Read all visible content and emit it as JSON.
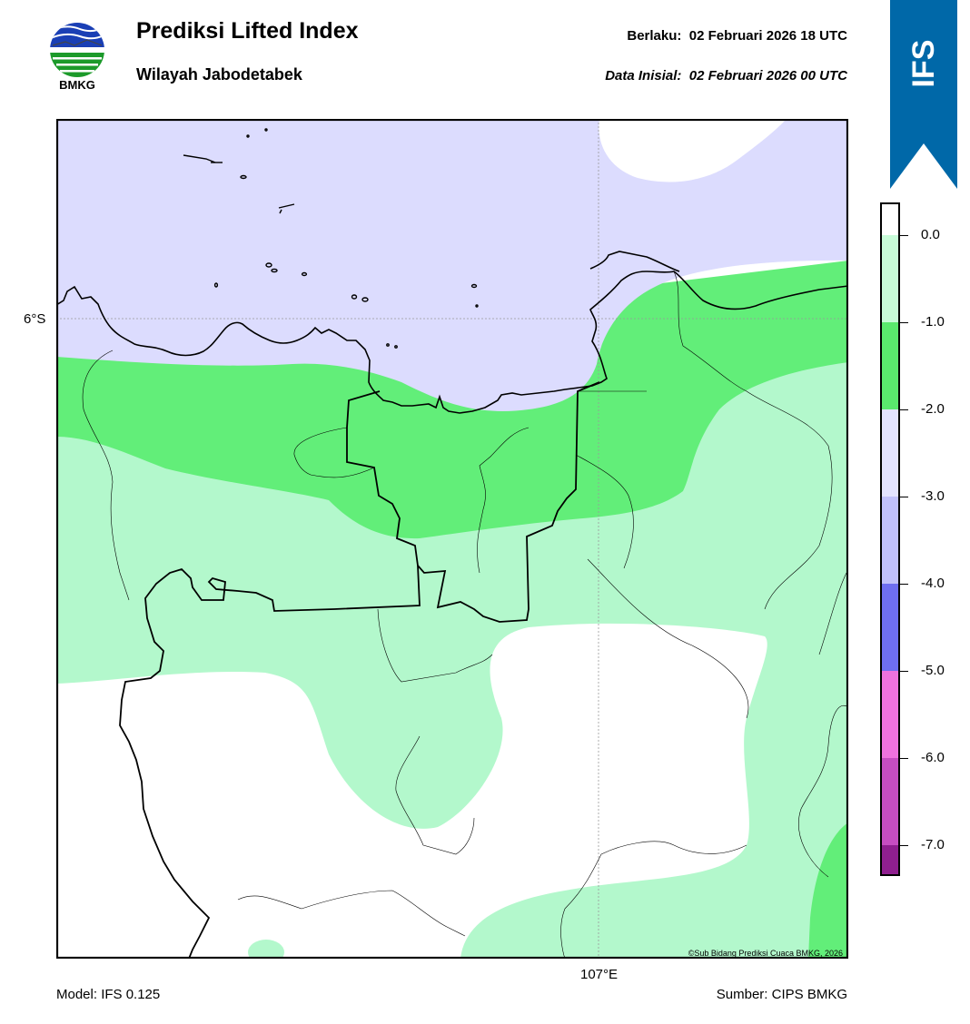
{
  "header": {
    "title": "Prediksi Lifted Index",
    "subtitle": "Wilayah Jabodetabek",
    "valid_label": "Berlaku:",
    "valid_time": "02 Februari 2026 18 UTC",
    "init_label": "Data Inisial:",
    "init_time": "02 Februari 2026 00 UTC"
  },
  "logo": {
    "name": "BMKG",
    "icon": "bmkg-logo"
  },
  "ribbon": {
    "label": "IFS",
    "color": "#0068a8"
  },
  "map": {
    "lat_label": "6°S",
    "lon_label": "107°E",
    "credit": "©Sub Bidang Prediksi Cuaca BMKG, 2026",
    "colors": {
      "background_white": "#ffffff",
      "li_0_to_-1": "#b3f8cc",
      "li_-1_to_-2": "#62ee79",
      "li_-2_to_-3": "#dcdcfe"
    }
  },
  "colorbar": {
    "ticks": [
      "0.0",
      "-1.0",
      "-2.0",
      "-3.0",
      "-4.0",
      "-5.0",
      "-6.0",
      "-7.0"
    ],
    "colors": [
      "#ffffff",
      "#c8fbd8",
      "#5ae96d",
      "#e2e2fe",
      "#c0c0fa",
      "#6e6ef0",
      "#ef72de",
      "#c64dc1",
      "#8f1f8f"
    ]
  },
  "footer": {
    "model": "Model: IFS 0.125",
    "source": "Sumber: CIPS BMKG"
  }
}
